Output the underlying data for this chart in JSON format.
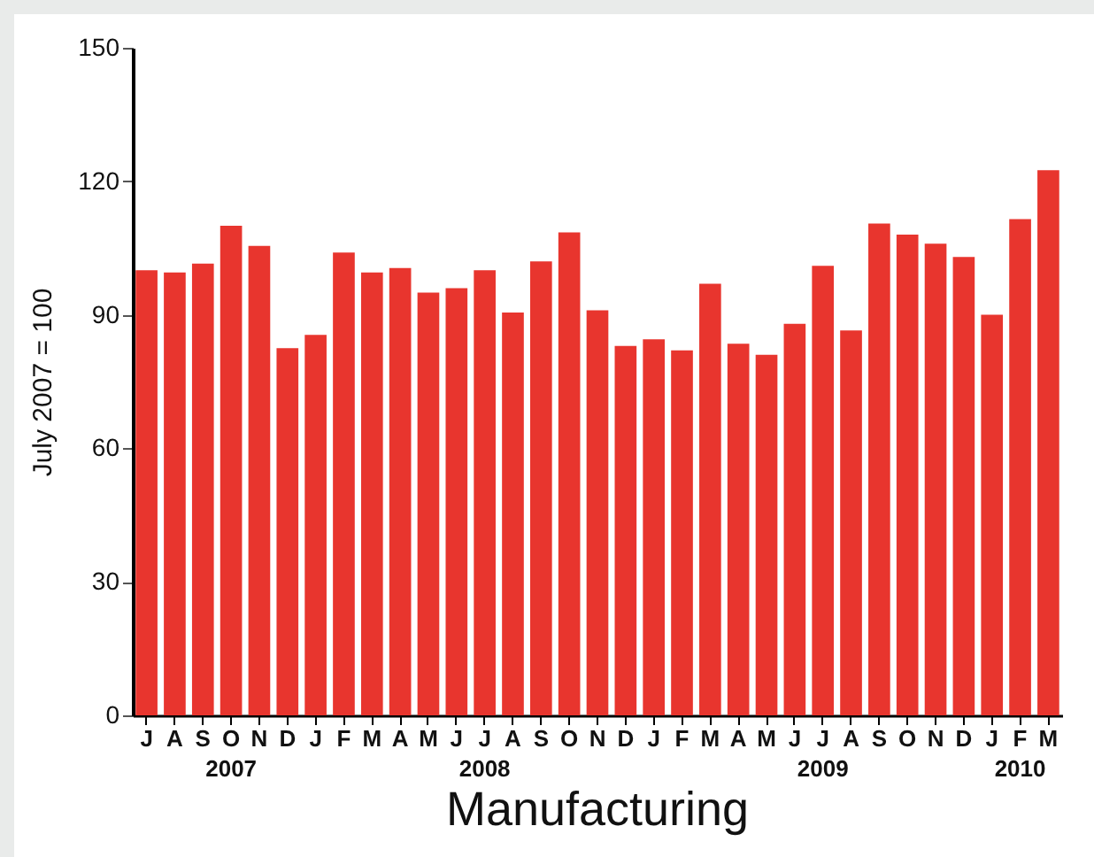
{
  "chart_data": {
    "type": "bar",
    "title": "Manufacturing",
    "ylabel": "July 2007 = 100",
    "categories": [
      "J",
      "A",
      "S",
      "O\n2007",
      "N",
      "D",
      "J",
      "F",
      "M",
      "A",
      "M",
      "J",
      "J\n2008",
      "A",
      "S",
      "O",
      "N",
      "D",
      "J",
      "F",
      "M",
      "A",
      "M",
      "J",
      "J\n2009",
      "A",
      "S",
      "O",
      "N",
      "D",
      "J",
      "F\n2010",
      "M"
    ],
    "values": [
      100,
      99.5,
      101.5,
      110,
      105.5,
      82.5,
      85.5,
      104,
      99.5,
      100.5,
      95,
      96,
      100,
      90.5,
      102,
      108.5,
      91,
      83,
      84.5,
      82,
      97,
      83.5,
      81,
      88,
      101,
      86.5,
      110.5,
      108,
      106,
      103,
      90,
      111.5,
      122.5
    ],
    "color": "#e8352e",
    "ylim": [
      0,
      150
    ],
    "yticks": [
      0,
      30,
      60,
      90,
      120,
      150
    ],
    "grid": false
  }
}
